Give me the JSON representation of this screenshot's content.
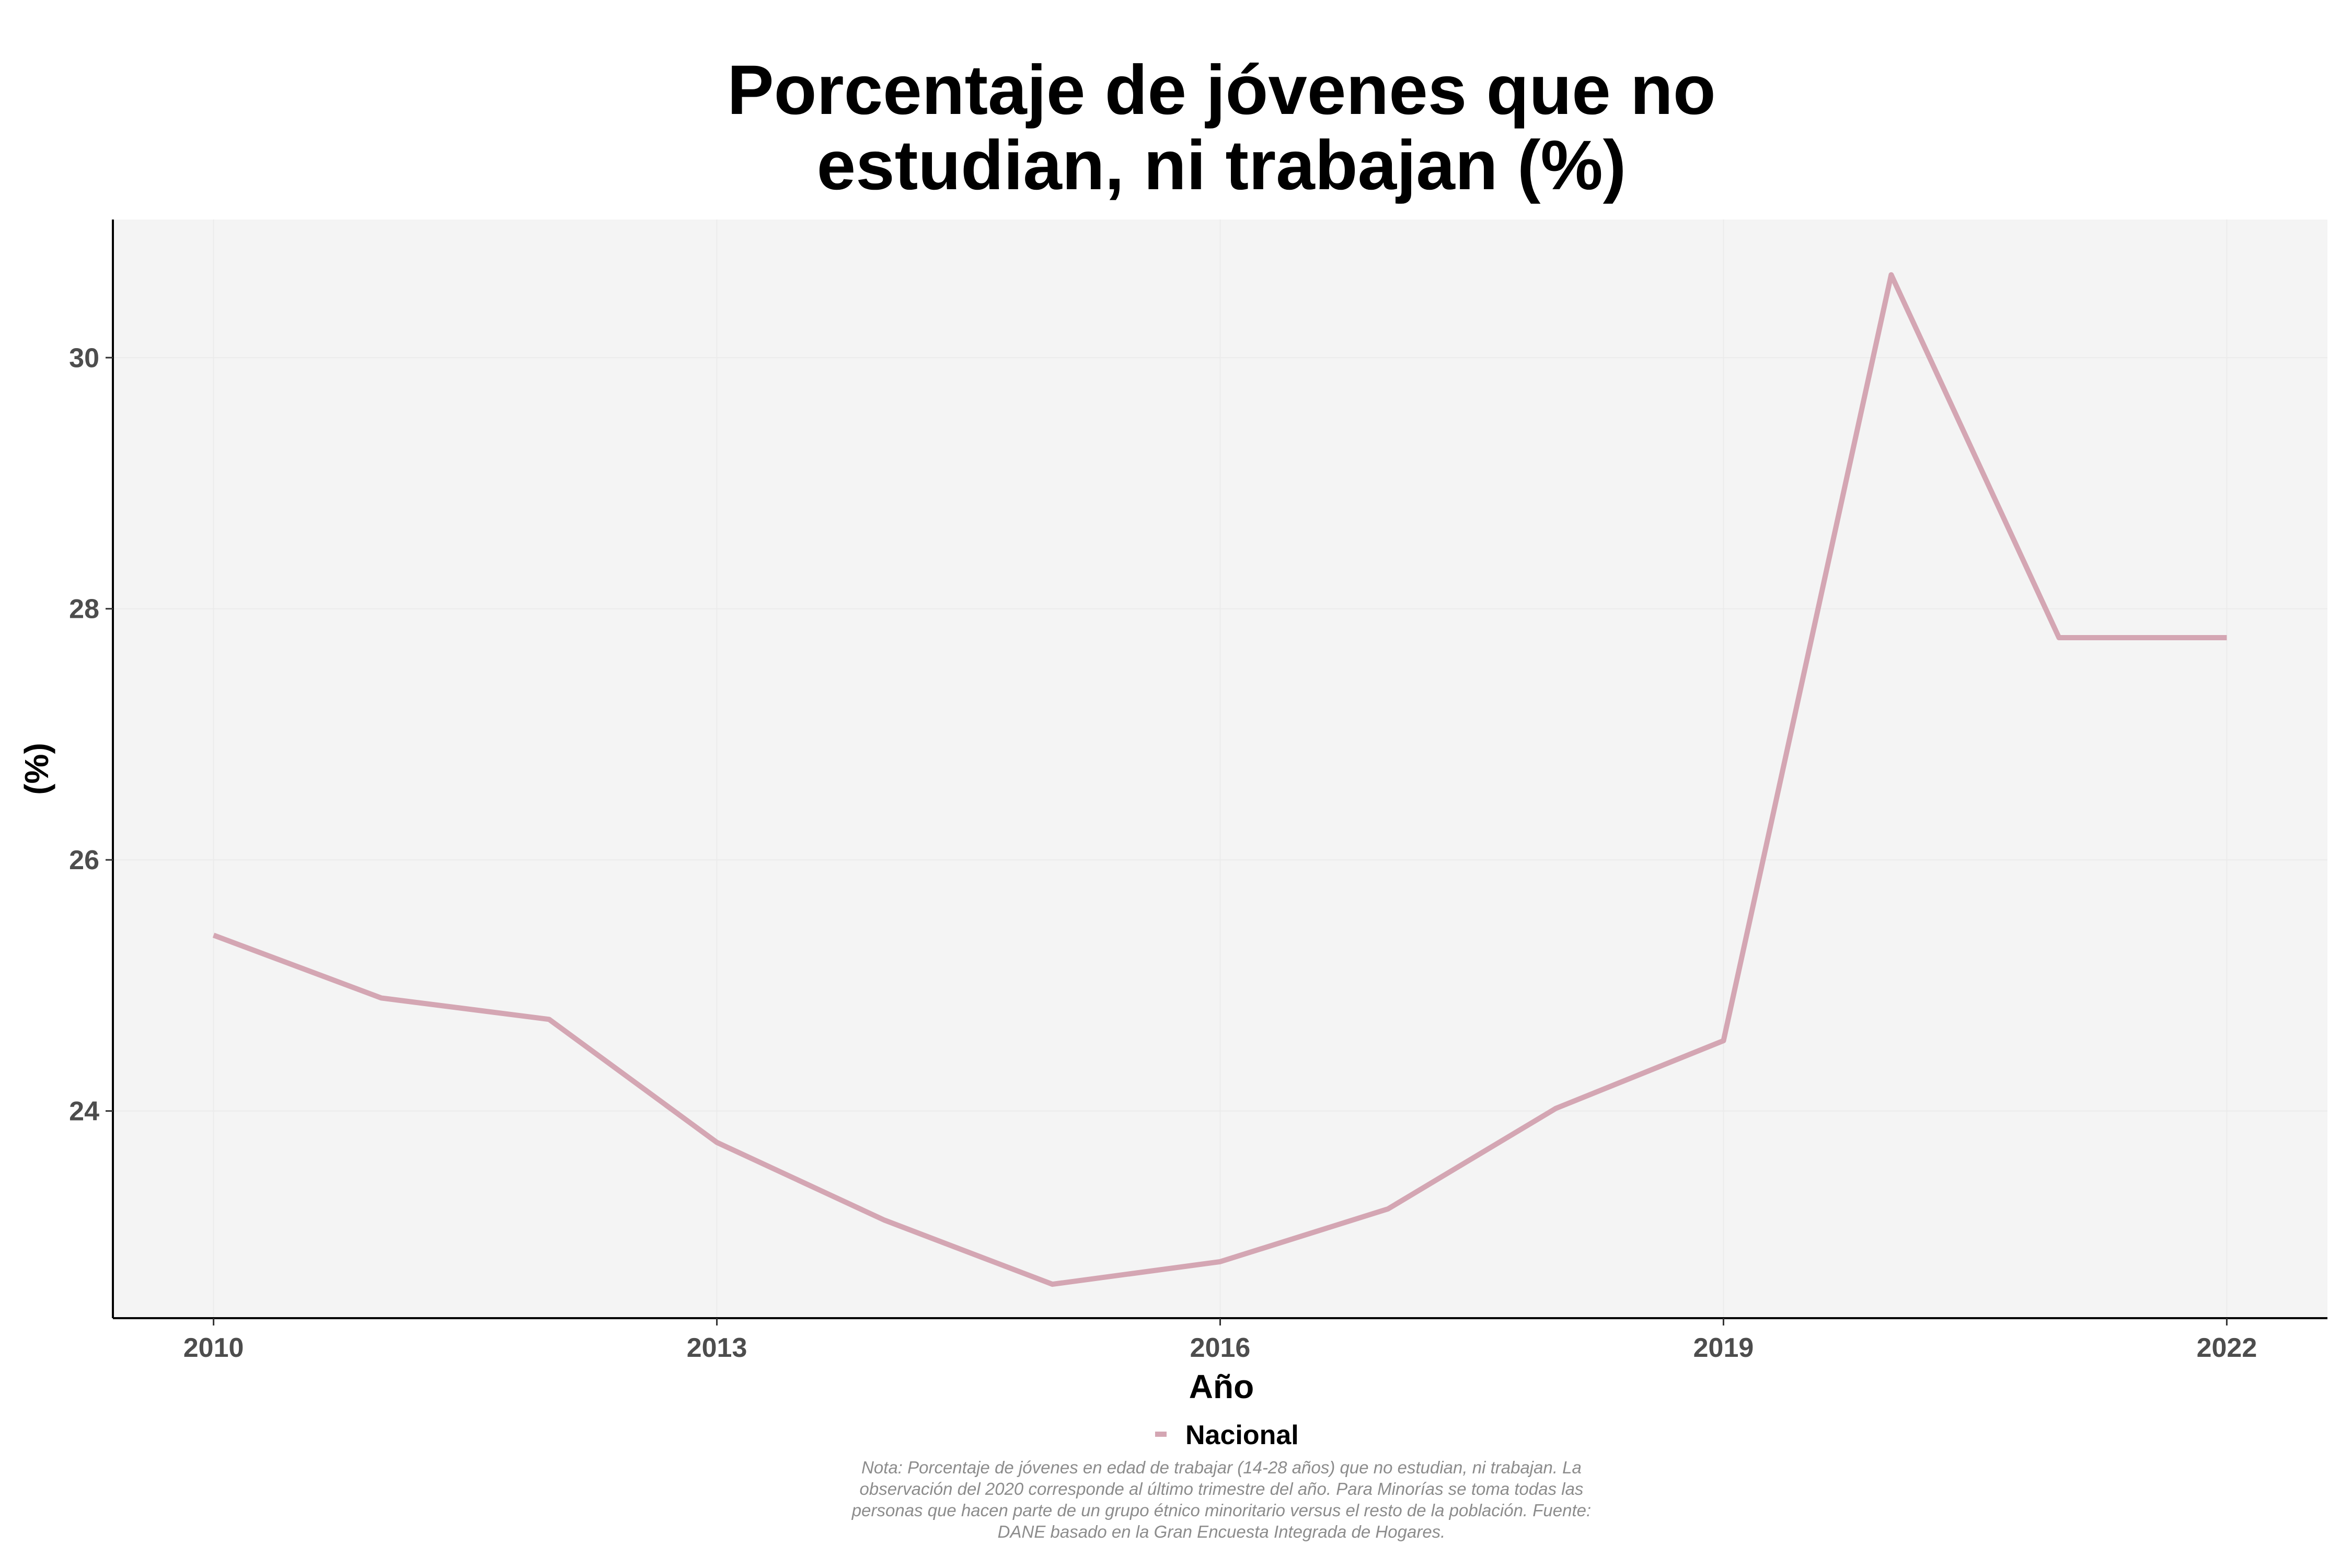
{
  "chart_data": {
    "type": "line",
    "title_lines": [
      "Porcentaje de jóvenes que no",
      "estudian, ni trabajan (%)"
    ],
    "xlabel": "Año",
    "ylabel": "(%)",
    "x": [
      2010,
      2011,
      2012,
      2013,
      2014,
      2015,
      2016,
      2017,
      2018,
      2019,
      2020,
      2021,
      2022
    ],
    "x_ticks": [
      2010,
      2013,
      2016,
      2019,
      2022
    ],
    "y_ticks": [
      24,
      26,
      28,
      30
    ],
    "xlim": [
      2009.4,
      2022.6
    ],
    "ylim": [
      22.35,
      31.1
    ],
    "series": [
      {
        "name": "Nacional",
        "values": [
          25.4,
          24.9,
          24.73,
          23.75,
          23.13,
          22.62,
          22.8,
          23.22,
          24.02,
          24.56,
          30.66,
          27.77,
          27.77
        ],
        "color": "#d4a6b3"
      }
    ],
    "legend_position": "bottom",
    "grid": true,
    "panel_background": "#f4f4f4",
    "grid_color": "#ebebeb",
    "note_lines": [
      "Nota: Porcentaje de jóvenes en edad de trabajar (14-28 años) que no estudian, ni trabajan. La",
      "observación del 2020 corresponde al último trimestre del año. Para Minorías se toma todas las",
      "personas que hacen parte de un grupo étnico minoritario versus el resto de la población. Fuente:",
      "DANE basado en la Gran Encuesta Integrada de Hogares."
    ]
  }
}
